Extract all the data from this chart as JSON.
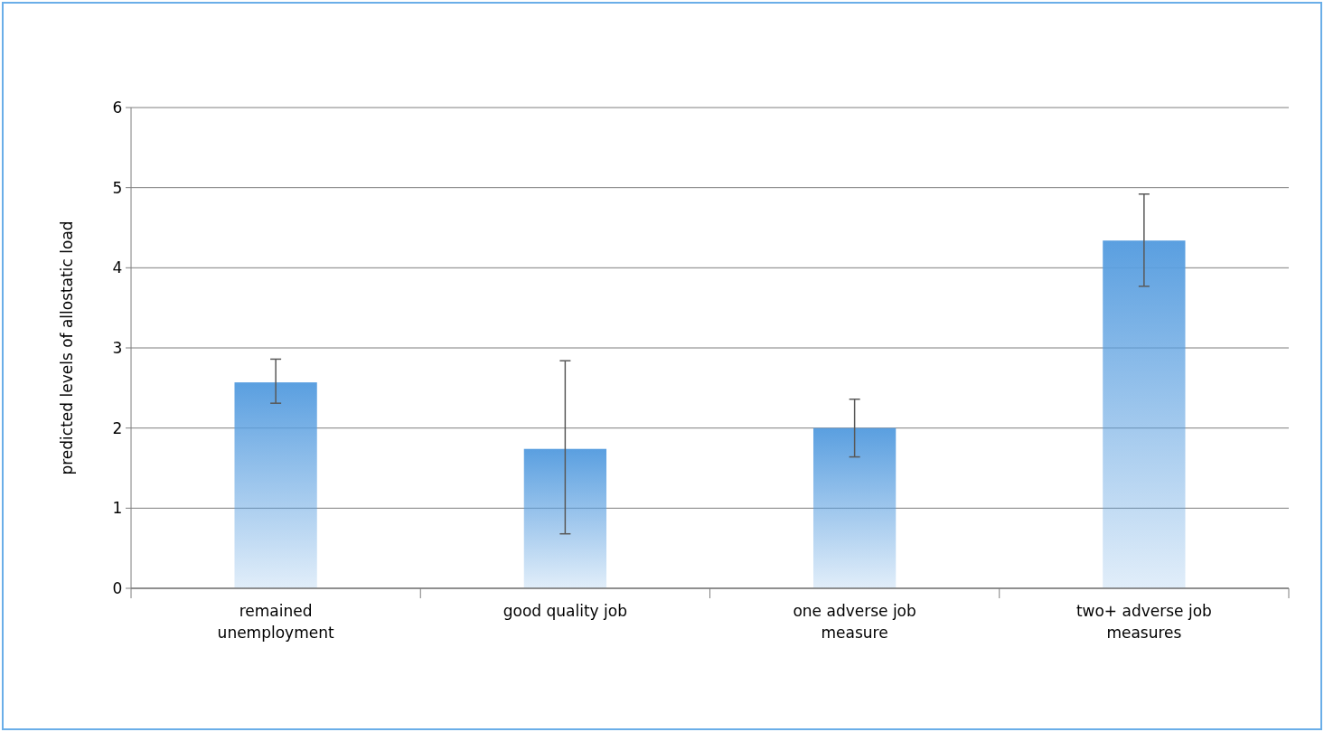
{
  "chart_data": {
    "type": "bar",
    "ylabel": "predicted levels of allostatic load",
    "categories": [
      "remained unemployment",
      "good quality job",
      "one adverse job measure",
      "two+ adverse job measures"
    ],
    "values": [
      2.57,
      1.74,
      2.0,
      4.34
    ],
    "errors": [
      [
        2.31,
        2.86
      ],
      [
        0.68,
        2.84
      ],
      [
        1.64,
        2.36
      ],
      [
        3.77,
        4.92
      ]
    ],
    "color": "#5a9fe0",
    "ylim": [
      0,
      6
    ],
    "yticks": [
      0,
      1,
      2,
      3,
      4,
      5,
      6
    ],
    "grid": "y"
  }
}
